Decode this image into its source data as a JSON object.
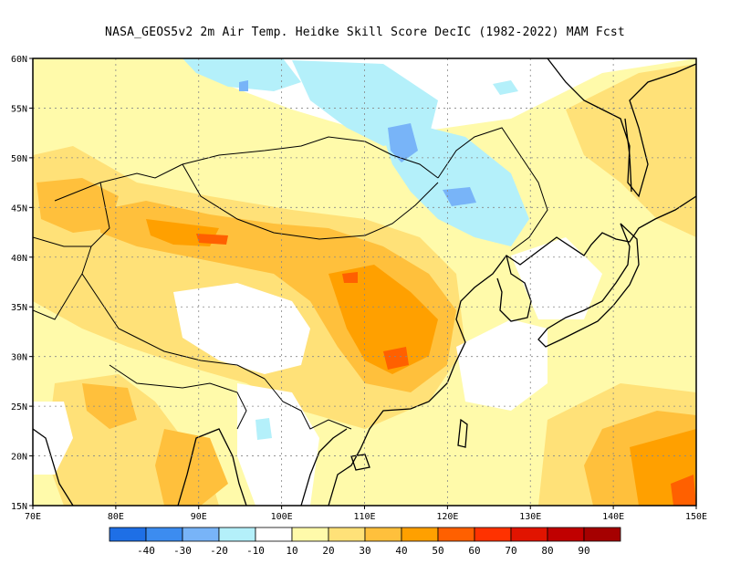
{
  "title": "NASA_GEOS5v2  2m Air Temp. Heidke Skill Score DecIC (1982-2022) MAM Fcst",
  "map": {
    "lon_range": [
      70,
      150
    ],
    "lat_range": [
      15,
      60
    ],
    "lon_ticks": [
      "70E",
      "80E",
      "90E",
      "100E",
      "110E",
      "120E",
      "130E",
      "140E",
      "150E"
    ],
    "lat_ticks": [
      "15N",
      "20N",
      "25N",
      "30N",
      "35N",
      "40N",
      "45N",
      "50N",
      "55N",
      "60N"
    ],
    "grid": true
  },
  "colorbar": {
    "labels": [
      "-40",
      "-30",
      "-20",
      "-10",
      "10",
      "20",
      "30",
      "40",
      "50",
      "60",
      "70",
      "80",
      "90"
    ],
    "colors": [
      "#1e6fe6",
      "#3c8cf0",
      "#78b4f8",
      "#b4f0fa",
      "#ffffff",
      "#fffaaa",
      "#ffe178",
      "#ffc03c",
      "#ffa000",
      "#ff6000",
      "#ff3200",
      "#e11400",
      "#c00000",
      "#a50000"
    ]
  },
  "field_colors": {
    "yellow": "#fffaaa",
    "gold": "#ffe178",
    "orange": "#ffc03c",
    "dark_orange": "#ffa000",
    "red_orange": "#ff6000",
    "light_blue": "#b4f0fa",
    "blue": "#78b4f8"
  }
}
